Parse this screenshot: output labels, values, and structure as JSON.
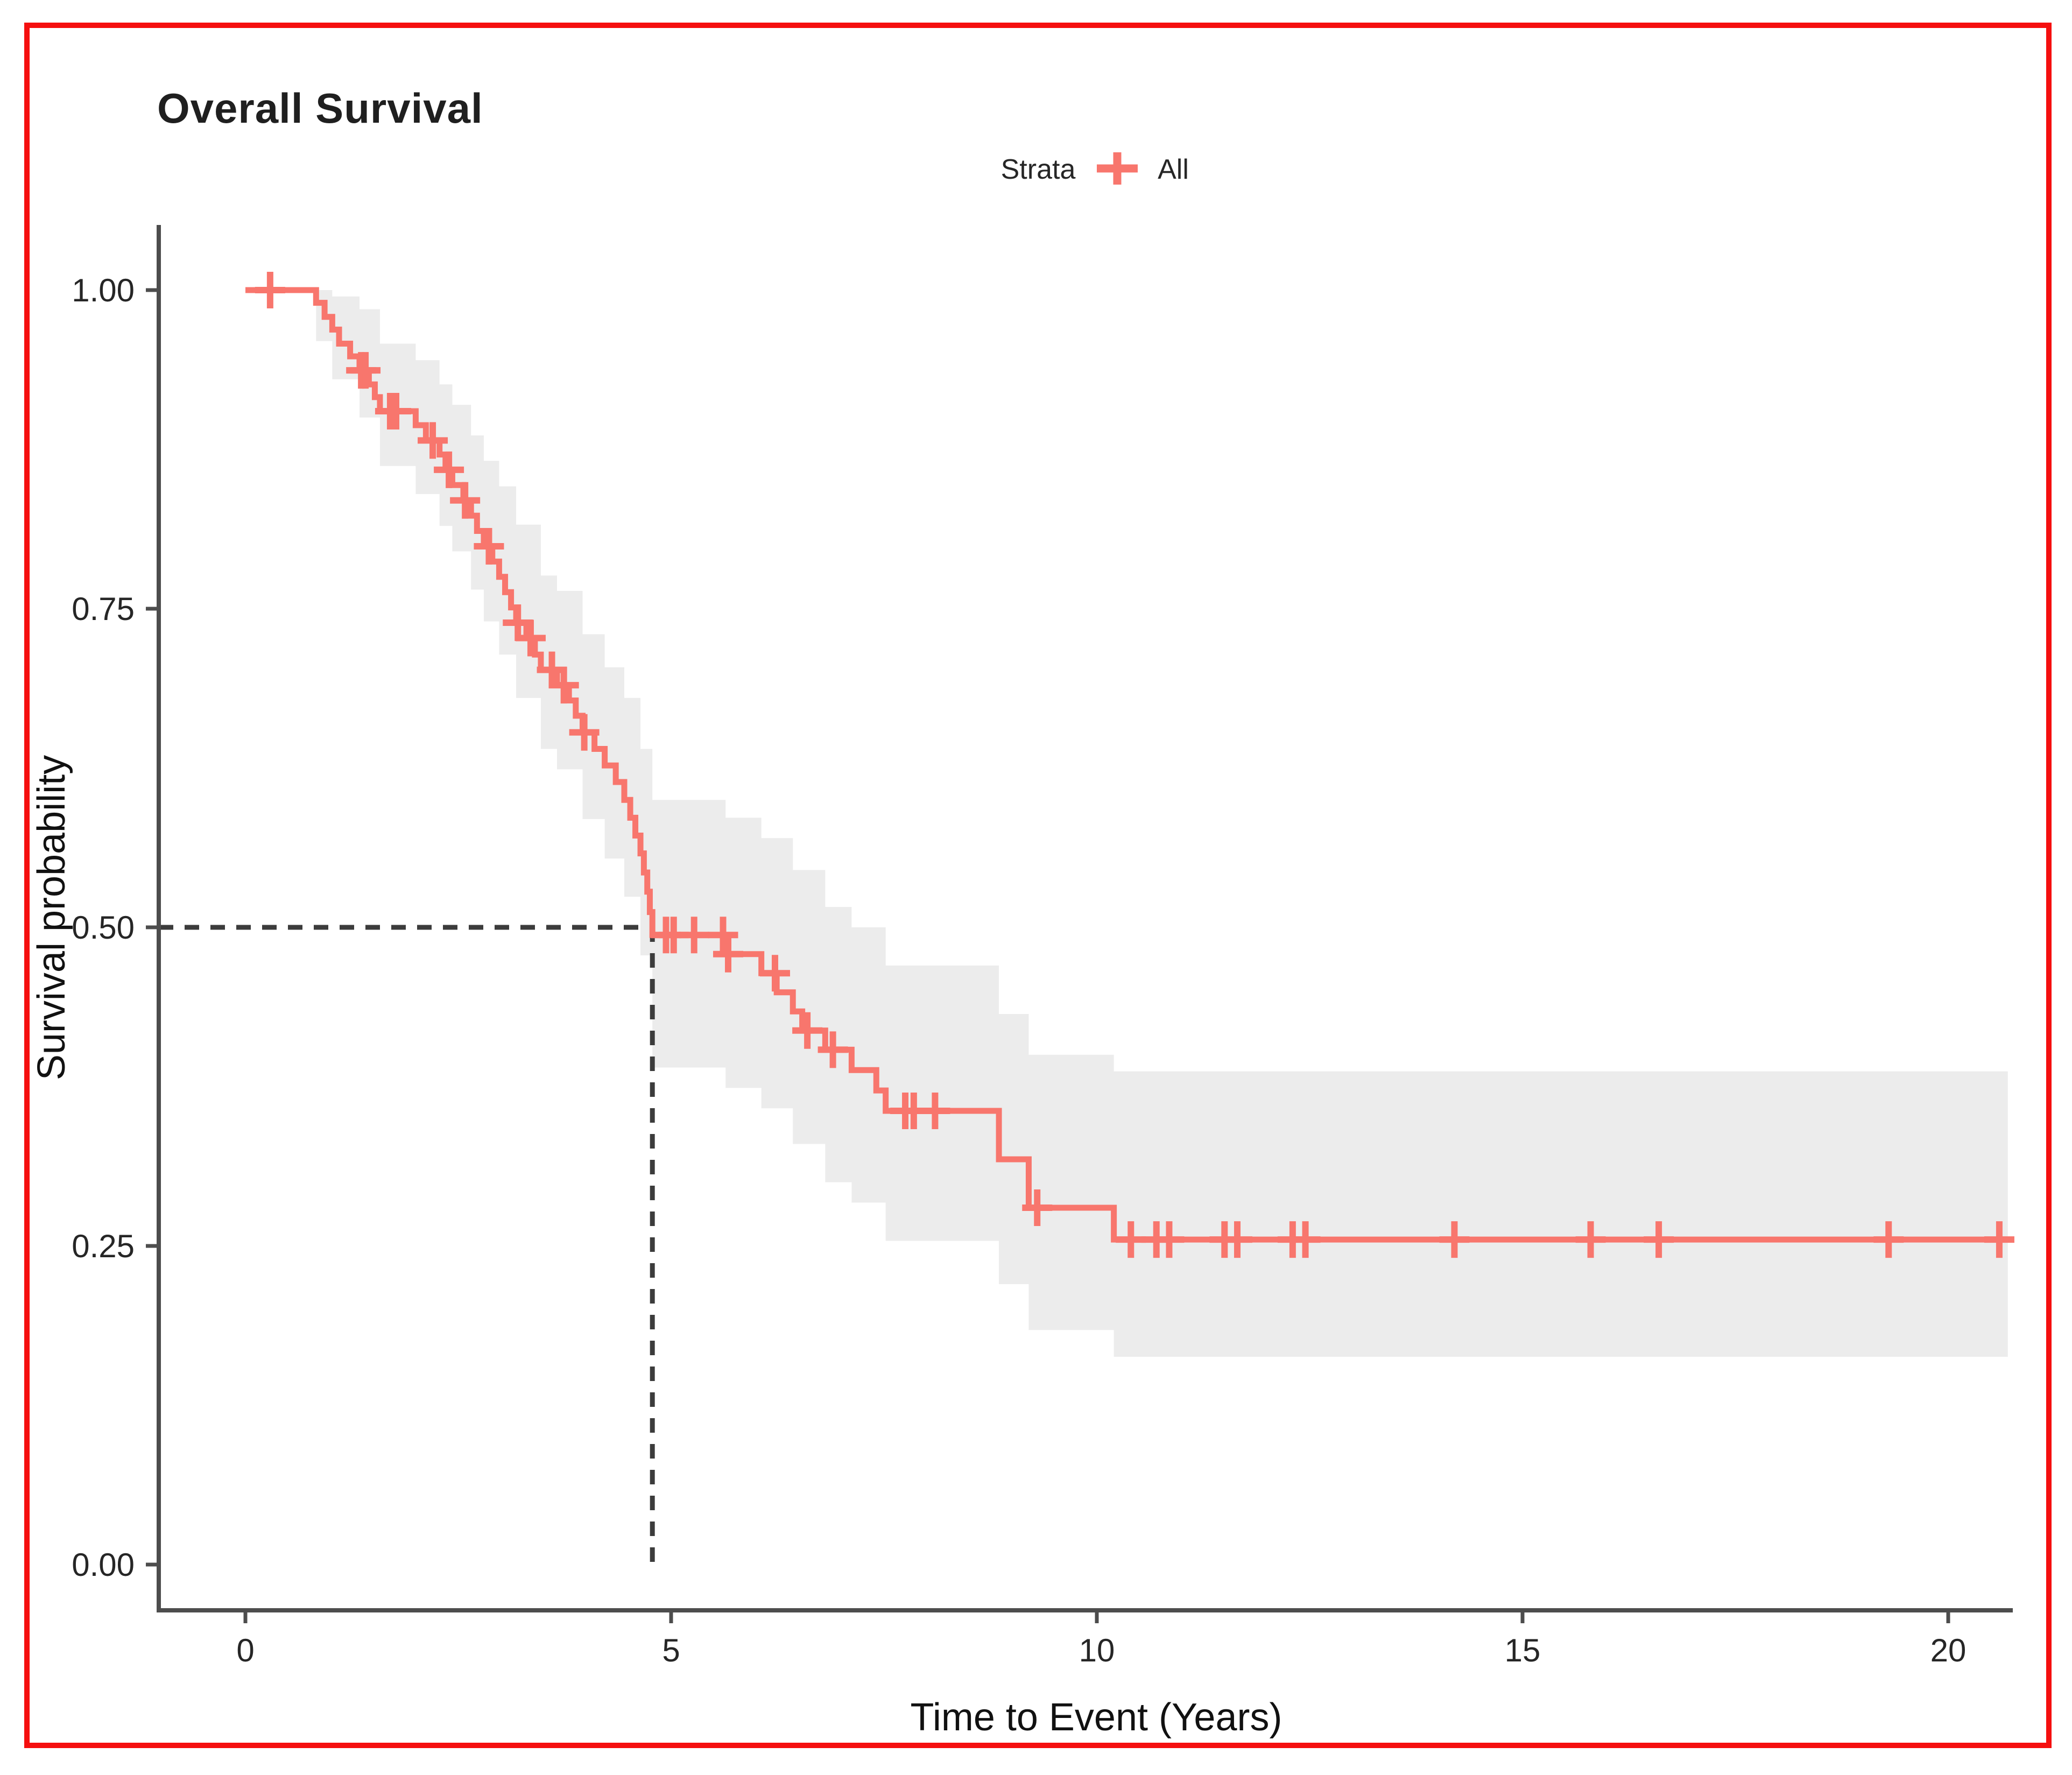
{
  "figure": {
    "background": "#ffffff",
    "border_color": "#f50f0f"
  },
  "colors": {
    "curve": "#F8766D",
    "ci_band": "#ECECEC",
    "dashed_line": "#3C3C3C",
    "axis_line": "#4D4D4D",
    "text": "#1f1f1f"
  },
  "chart_data": {
    "type": "line",
    "subtype": "kaplan-meier-step-curve",
    "title": "Overall Survival",
    "xlabel": "Time to Event (Years)",
    "ylabel": "Survival probability",
    "x_ticks": [
      0,
      5,
      10,
      15,
      20
    ],
    "x_tick_labels": [
      "0",
      "5",
      "10",
      "15",
      "20"
    ],
    "y_ticks": [
      0.0,
      0.25,
      0.5,
      0.75,
      1.0
    ],
    "y_tick_labels": [
      "0.00",
      "0.25",
      "0.50",
      "0.75",
      "1.00"
    ],
    "xlim": [
      -1.0,
      21.7
    ],
    "ylim": [
      -0.03,
      1.05
    ],
    "grid": false,
    "legend": {
      "position": "top",
      "title": "Strata",
      "entries": [
        {
          "label": "All",
          "color": "#F8766D",
          "symbol": "plus"
        }
      ]
    },
    "median_annotation": {
      "time": 4.78,
      "survival": 0.5,
      "style": "dashed"
    },
    "series": [
      {
        "name": "All",
        "color": "#F8766D",
        "steps": [
          [
            0.0,
            1.0
          ],
          [
            0.83,
            0.99
          ],
          [
            0.93,
            0.979
          ],
          [
            1.02,
            0.969
          ],
          [
            1.1,
            0.958
          ],
          [
            1.23,
            0.948
          ],
          [
            1.34,
            0.937
          ],
          [
            1.45,
            0.926
          ],
          [
            1.52,
            0.916
          ],
          [
            1.58,
            0.905
          ],
          [
            2.0,
            0.894
          ],
          [
            2.12,
            0.882
          ],
          [
            2.28,
            0.871
          ],
          [
            2.35,
            0.859
          ],
          [
            2.43,
            0.847
          ],
          [
            2.56,
            0.835
          ],
          [
            2.65,
            0.823
          ],
          [
            2.72,
            0.811
          ],
          [
            2.8,
            0.799
          ],
          [
            2.9,
            0.787
          ],
          [
            2.98,
            0.775
          ],
          [
            3.05,
            0.763
          ],
          [
            3.12,
            0.751
          ],
          [
            3.18,
            0.739
          ],
          [
            3.3,
            0.727
          ],
          [
            3.4,
            0.714
          ],
          [
            3.47,
            0.702
          ],
          [
            3.66,
            0.69
          ],
          [
            3.8,
            0.678
          ],
          [
            3.88,
            0.666
          ],
          [
            3.96,
            0.653
          ],
          [
            4.1,
            0.64
          ],
          [
            4.22,
            0.627
          ],
          [
            4.35,
            0.614
          ],
          [
            4.45,
            0.6
          ],
          [
            4.52,
            0.586
          ],
          [
            4.58,
            0.572
          ],
          [
            4.64,
            0.558
          ],
          [
            4.68,
            0.543
          ],
          [
            4.72,
            0.528
          ],
          [
            4.75,
            0.512
          ],
          [
            4.78,
            0.494
          ],
          [
            5.64,
            0.479
          ],
          [
            6.06,
            0.464
          ],
          [
            6.24,
            0.449
          ],
          [
            6.43,
            0.434
          ],
          [
            6.54,
            0.419
          ],
          [
            6.81,
            0.404
          ],
          [
            7.12,
            0.388
          ],
          [
            7.41,
            0.372
          ],
          [
            7.52,
            0.356
          ],
          [
            8.85,
            0.318
          ],
          [
            9.2,
            0.28
          ],
          [
            10.2,
            0.255
          ],
          [
            20.7,
            0.255
          ]
        ],
        "censors": [
          [
            0.29,
            1.0
          ],
          [
            1.36,
            0.937
          ],
          [
            1.41,
            0.937
          ],
          [
            1.7,
            0.905
          ],
          [
            1.77,
            0.905
          ],
          [
            2.2,
            0.882
          ],
          [
            2.39,
            0.859
          ],
          [
            2.58,
            0.835
          ],
          [
            2.86,
            0.799
          ],
          [
            3.2,
            0.739
          ],
          [
            3.35,
            0.727
          ],
          [
            3.6,
            0.702
          ],
          [
            3.74,
            0.69
          ],
          [
            3.98,
            0.653
          ],
          [
            4.94,
            0.494
          ],
          [
            5.03,
            0.494
          ],
          [
            5.27,
            0.494
          ],
          [
            5.61,
            0.494
          ],
          [
            5.67,
            0.479
          ],
          [
            6.22,
            0.464
          ],
          [
            6.6,
            0.419
          ],
          [
            6.9,
            0.404
          ],
          [
            7.75,
            0.356
          ],
          [
            7.85,
            0.356
          ],
          [
            8.1,
            0.356
          ],
          [
            9.3,
            0.28
          ],
          [
            10.4,
            0.255
          ],
          [
            10.7,
            0.255
          ],
          [
            10.85,
            0.255
          ],
          [
            11.5,
            0.255
          ],
          [
            11.65,
            0.255
          ],
          [
            12.3,
            0.255
          ],
          [
            12.45,
            0.255
          ],
          [
            14.2,
            0.255
          ],
          [
            15.8,
            0.255
          ],
          [
            16.6,
            0.255
          ],
          [
            19.3,
            0.255
          ],
          [
            20.6,
            0.255
          ]
        ],
        "ci": [
          [
            0.0,
            1.0,
            1.0
          ],
          [
            0.83,
            0.96,
            1.0
          ],
          [
            1.02,
            0.93,
            0.995
          ],
          [
            1.34,
            0.9,
            0.985
          ],
          [
            1.58,
            0.862,
            0.958
          ],
          [
            2.0,
            0.84,
            0.945
          ],
          [
            2.28,
            0.815,
            0.926
          ],
          [
            2.43,
            0.795,
            0.91
          ],
          [
            2.65,
            0.765,
            0.886
          ],
          [
            2.8,
            0.74,
            0.866
          ],
          [
            2.98,
            0.714,
            0.846
          ],
          [
            3.18,
            0.68,
            0.816
          ],
          [
            3.47,
            0.64,
            0.776
          ],
          [
            3.66,
            0.624,
            0.764
          ],
          [
            3.96,
            0.585,
            0.73
          ],
          [
            4.22,
            0.554,
            0.704
          ],
          [
            4.45,
            0.524,
            0.68
          ],
          [
            4.64,
            0.478,
            0.64
          ],
          [
            4.78,
            0.39,
            0.6
          ],
          [
            5.64,
            0.374,
            0.586
          ],
          [
            6.06,
            0.358,
            0.57
          ],
          [
            6.43,
            0.33,
            0.545
          ],
          [
            6.81,
            0.3,
            0.516
          ],
          [
            7.12,
            0.284,
            0.5
          ],
          [
            7.52,
            0.254,
            0.47
          ],
          [
            8.85,
            0.22,
            0.432
          ],
          [
            9.2,
            0.184,
            0.4
          ],
          [
            10.2,
            0.163,
            0.387
          ],
          [
            20.7,
            0.163,
            0.387
          ]
        ]
      }
    ]
  }
}
